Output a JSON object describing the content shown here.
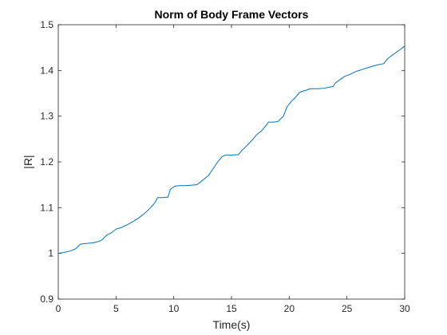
{
  "chart_data": {
    "type": "line",
    "title": "Norm of Body Frame Vectors",
    "xlabel": "Time(s)",
    "ylabel": "|R|",
    "xlim": [
      0,
      30
    ],
    "ylim": [
      0.9,
      1.5
    ],
    "xticks": [
      0,
      5,
      10,
      15,
      20,
      25,
      30
    ],
    "xtick_labels": [
      "0",
      "5",
      "10",
      "15",
      "20",
      "25",
      "30"
    ],
    "yticks": [
      0.9,
      1.0,
      1.1,
      1.2,
      1.3,
      1.4,
      1.5
    ],
    "ytick_labels": [
      "0.9",
      "1",
      "1.1",
      "1.2",
      "1.3",
      "1.4",
      "1.5"
    ],
    "grid": false,
    "line_color": "#0072BD",
    "series": [
      {
        "x": [
          0,
          0.5,
          1.0,
          1.5,
          1.9,
          2.2,
          2.6,
          3.0,
          3.5,
          3.8,
          4.2,
          4.6,
          5.0,
          5.5,
          6.0,
          6.5,
          7.0,
          7.5,
          8.0,
          8.4,
          8.6,
          9.0,
          9.5,
          9.7,
          10.1,
          10.5,
          11.0,
          12.0,
          12.5,
          13.0,
          13.4,
          13.8,
          14.2,
          14.5,
          15.0,
          15.6,
          15.9,
          16.3,
          16.8,
          17.2,
          17.6,
          18.0,
          18.2,
          18.6,
          19.0,
          19.5,
          19.8,
          20.2,
          20.5,
          20.9,
          21.2,
          21.5,
          21.8,
          22.2,
          22.5,
          23.0,
          23.8,
          24.0,
          24.4,
          24.8,
          25.3,
          25.8,
          26.3,
          26.8,
          27.3,
          27.8,
          28.2,
          28.5,
          28.9,
          29.4,
          30.0
        ],
        "y": [
          1.0,
          1.002,
          1.005,
          1.01,
          1.02,
          1.021,
          1.022,
          1.023,
          1.026,
          1.03,
          1.04,
          1.045,
          1.053,
          1.057,
          1.063,
          1.07,
          1.078,
          1.088,
          1.1,
          1.112,
          1.122,
          1.122,
          1.123,
          1.14,
          1.147,
          1.148,
          1.148,
          1.15,
          1.16,
          1.17,
          1.185,
          1.2,
          1.212,
          1.215,
          1.215,
          1.216,
          1.225,
          1.235,
          1.248,
          1.26,
          1.268,
          1.28,
          1.287,
          1.287,
          1.288,
          1.3,
          1.32,
          1.333,
          1.34,
          1.352,
          1.355,
          1.357,
          1.36,
          1.36,
          1.36,
          1.361,
          1.365,
          1.373,
          1.38,
          1.387,
          1.392,
          1.398,
          1.402,
          1.406,
          1.41,
          1.413,
          1.415,
          1.425,
          1.433,
          1.442,
          1.453
        ]
      }
    ]
  }
}
